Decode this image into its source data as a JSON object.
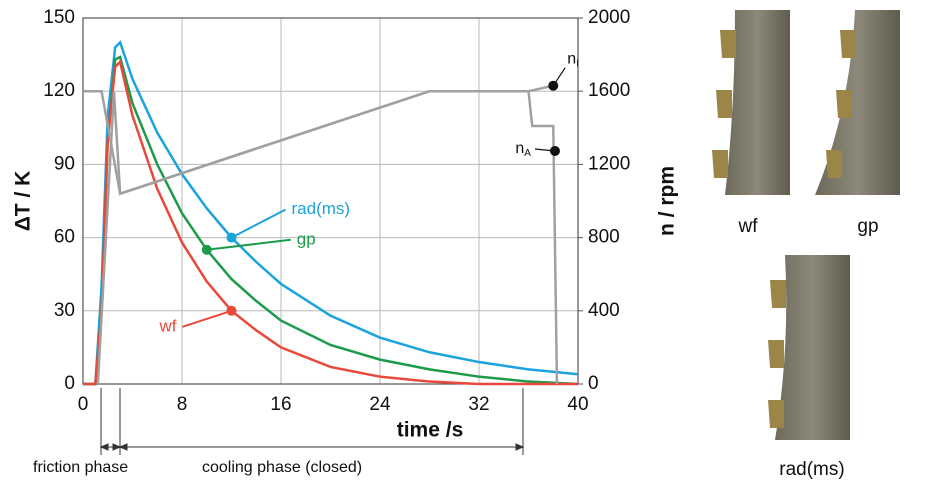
{
  "chart_data": {
    "type": "line",
    "x_label": "time /s",
    "y_label": "ΔT / K",
    "y2_label": "n / rpm",
    "xlim": [
      0,
      40
    ],
    "xticks": [
      0,
      8,
      16,
      24,
      32,
      40
    ],
    "ylim": [
      0,
      150
    ],
    "yticks": [
      0,
      30,
      60,
      90,
      120,
      150
    ],
    "y2lim": [
      0,
      2000
    ],
    "y2ticks": [
      0,
      400,
      800,
      1200,
      1600,
      2000
    ],
    "grid": true,
    "series": [
      {
        "name": "rad(ms)",
        "color": "#1ba3dc",
        "x": [
          0,
          1,
          1.5,
          2,
          2.6,
          3,
          4,
          6,
          8,
          10,
          12,
          14,
          16,
          20,
          24,
          28,
          32,
          36,
          40
        ],
        "values": [
          0,
          0,
          40,
          110,
          138,
          140,
          125,
          103,
          86,
          72,
          60,
          50,
          41,
          28,
          19,
          13,
          9,
          6,
          4
        ]
      },
      {
        "name": "gp",
        "color": "#1e9a4b",
        "x": [
          0,
          1,
          1.5,
          2,
          2.6,
          3,
          4,
          6,
          8,
          10,
          12,
          14,
          16,
          20,
          24,
          28,
          32,
          36,
          40
        ],
        "values": [
          0,
          0,
          30,
          100,
          133,
          134,
          115,
          90,
          70,
          55,
          43,
          34,
          26,
          16,
          10,
          6,
          3,
          1,
          0
        ]
      },
      {
        "name": "wf",
        "color": "#e8493a",
        "x": [
          0,
          1,
          1.5,
          2,
          2.6,
          3,
          4,
          6,
          8,
          10,
          12,
          14,
          16,
          20,
          24,
          28,
          32,
          36,
          40
        ],
        "values": [
          0,
          0,
          30,
          100,
          130,
          132,
          110,
          80,
          58,
          42,
          30,
          22,
          15,
          7,
          3,
          1,
          0,
          0,
          0
        ]
      },
      {
        "name": {
          "base": "n",
          "sub": "I"
        },
        "color": "#a0a0a0",
        "axis": "y2",
        "x": [
          0,
          1.5,
          3,
          28,
          36,
          38
        ],
        "values": [
          1600,
          1600,
          1040,
          1600,
          1600,
          1630
        ]
      },
      {
        "name": {
          "base": "n",
          "sub": "A"
        },
        "color": "#a0a0a0",
        "axis": "y2",
        "x": [
          1.2,
          2.5,
          3,
          28,
          36,
          36.3,
          38,
          38.3
        ],
        "values": [
          0,
          1600,
          1040,
          1600,
          1600,
          1410,
          1410,
          0
        ]
      }
    ],
    "phases": [
      "friction phase",
      "cooling phase (closed)"
    ],
    "photo_labels": [
      "wf",
      "gp",
      "rad(ms)"
    ]
  }
}
